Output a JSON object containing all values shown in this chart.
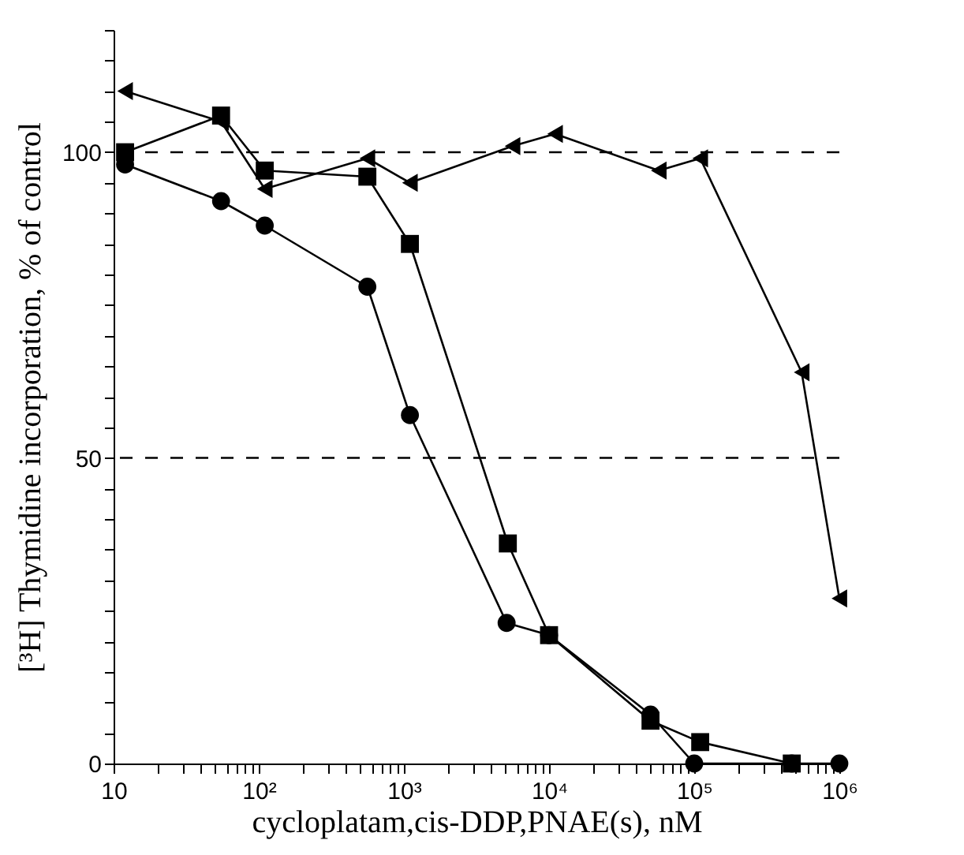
{
  "chart_data": {
    "type": "line",
    "xlabel": "cycloplatam,cis-DDP,PNAE(s),  nM",
    "ylabel": "[³H] Thymidine incorporation, % of control",
    "log": "x",
    "grid": false,
    "xlim": [
      10,
      1000000
    ],
    "xticks": [
      {
        "value": 10,
        "label": "10"
      },
      {
        "value": 20,
        "label": null
      },
      {
        "value": 30,
        "label": null
      },
      {
        "value": 40,
        "label": null
      },
      {
        "value": 50,
        "label": null
      },
      {
        "value": 60,
        "label": null
      },
      {
        "value": 70,
        "label": null
      },
      {
        "value": 80,
        "label": null
      },
      {
        "value": 90,
        "label": null
      },
      {
        "value": 100,
        "label": "10²"
      },
      {
        "value": 200,
        "label": null
      },
      {
        "value": 300,
        "label": null
      },
      {
        "value": 400,
        "label": null
      },
      {
        "value": 500,
        "label": null
      },
      {
        "value": 600,
        "label": null
      },
      {
        "value": 700,
        "label": null
      },
      {
        "value": 800,
        "label": null
      },
      {
        "value": 900,
        "label": null
      },
      {
        "value": 1000,
        "label": "10³"
      },
      {
        "value": 2000,
        "label": null
      },
      {
        "value": 3000,
        "label": null
      },
      {
        "value": 4000,
        "label": null
      },
      {
        "value": 5000,
        "label": null
      },
      {
        "value": 6000,
        "label": null
      },
      {
        "value": 7000,
        "label": null
      },
      {
        "value": 8000,
        "label": null
      },
      {
        "value": 9000,
        "label": null
      },
      {
        "value": 10000,
        "label": "10⁴"
      },
      {
        "value": 20000,
        "label": null
      },
      {
        "value": 30000,
        "label": null
      },
      {
        "value": 40000,
        "label": null
      },
      {
        "value": 50000,
        "label": null
      },
      {
        "value": 60000,
        "label": null
      },
      {
        "value": 70000,
        "label": null
      },
      {
        "value": 80000,
        "label": null
      },
      {
        "value": 90000,
        "label": null
      },
      {
        "value": 100000,
        "label": "10⁵"
      },
      {
        "value": 200000,
        "label": null
      },
      {
        "value": 300000,
        "label": null
      },
      {
        "value": 400000,
        "label": null
      },
      {
        "value": 500000,
        "label": null
      },
      {
        "value": 600000,
        "label": null
      },
      {
        "value": 700000,
        "label": null
      },
      {
        "value": 800000,
        "label": null
      },
      {
        "value": 900000,
        "label": null
      },
      {
        "value": 1000000,
        "label": "10⁶"
      }
    ],
    "ylim": [
      0,
      120
    ],
    "yticks": [
      0,
      {
        "value": 5,
        "label": null
      },
      {
        "value": 10,
        "label": null
      },
      {
        "value": 15,
        "label": null
      },
      {
        "value": 20,
        "label": null
      },
      {
        "value": 25,
        "label": null
      },
      {
        "value": 30,
        "label": null
      },
      {
        "value": 35,
        "label": null
      },
      {
        "value": 40,
        "label": null
      },
      {
        "value": 45,
        "label": null
      },
      50,
      {
        "value": 55,
        "label": null
      },
      {
        "value": 60,
        "label": null
      },
      {
        "value": 65,
        "label": null
      },
      {
        "value": 70,
        "label": null
      },
      {
        "value": 75,
        "label": null
      },
      {
        "value": 80,
        "label": null
      },
      {
        "value": 85,
        "label": null
      },
      {
        "value": 90,
        "label": null
      },
      {
        "value": 95,
        "label": null
      },
      100,
      {
        "value": 105,
        "label": null
      },
      {
        "value": 110,
        "label": null
      },
      {
        "value": 115,
        "label": null
      },
      {
        "value": 120,
        "label": null
      }
    ],
    "ref_lines": [
      {
        "axis": "y",
        "value": 100,
        "line_style": "dashed",
        "color": "#000000"
      },
      {
        "axis": "y",
        "value": 50,
        "line_style": "dashed",
        "color": "#000000"
      }
    ],
    "series": [
      {
        "color": "#000000",
        "marker": "circle",
        "x": [
          12,
          55,
          110,
          560,
          1100,
          5100,
          10000,
          50000,
          100000,
          470000,
          1000000
        ],
        "values": [
          98,
          92,
          88,
          78,
          57,
          23,
          21,
          8,
          0,
          0,
          0
        ]
      },
      {
        "color": "#000000",
        "marker": "square",
        "x": [
          12,
          55,
          110,
          560,
          1100,
          5200,
          10000,
          50000,
          110000,
          470000
        ],
        "values": [
          100,
          106,
          97,
          96,
          85,
          36,
          21,
          7,
          3.5,
          0
        ]
      },
      {
        "color": "#000000",
        "marker": "triangle",
        "x": [
          12,
          55,
          110,
          560,
          1100,
          5600,
          11000,
          57000,
          110000,
          550000,
          1000000
        ],
        "values": [
          110,
          105,
          94,
          99,
          95,
          101,
          103,
          97,
          99,
          64,
          27
        ]
      }
    ]
  }
}
